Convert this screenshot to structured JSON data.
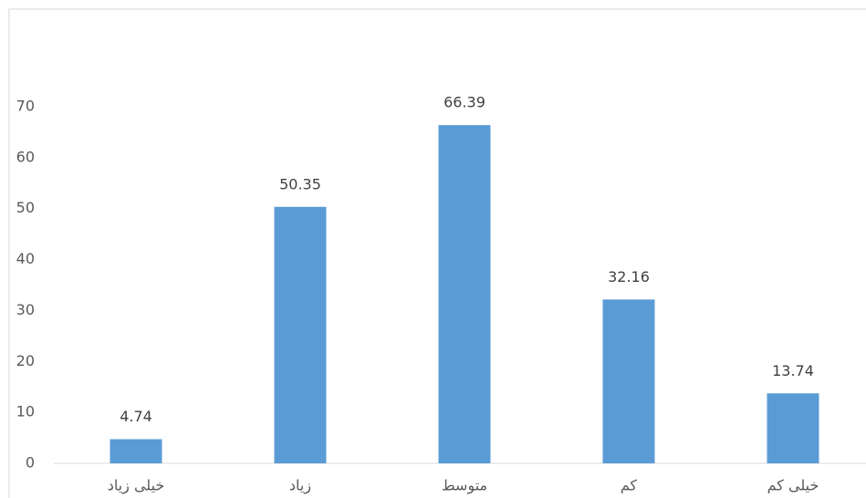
{
  "chart_data": {
    "type": "bar",
    "categories": [
      "خیلی زیاد",
      "زیاد",
      "متوسط",
      "کم",
      "خیلی کم"
    ],
    "values": [
      4.74,
      50.35,
      66.39,
      32.16,
      13.74
    ],
    "color": "#5b9bd5",
    "ylim": [
      0,
      70
    ],
    "yticks": [
      0,
      10,
      20,
      30,
      40,
      50,
      60,
      70
    ],
    "grid": false,
    "data_labels": true
  }
}
